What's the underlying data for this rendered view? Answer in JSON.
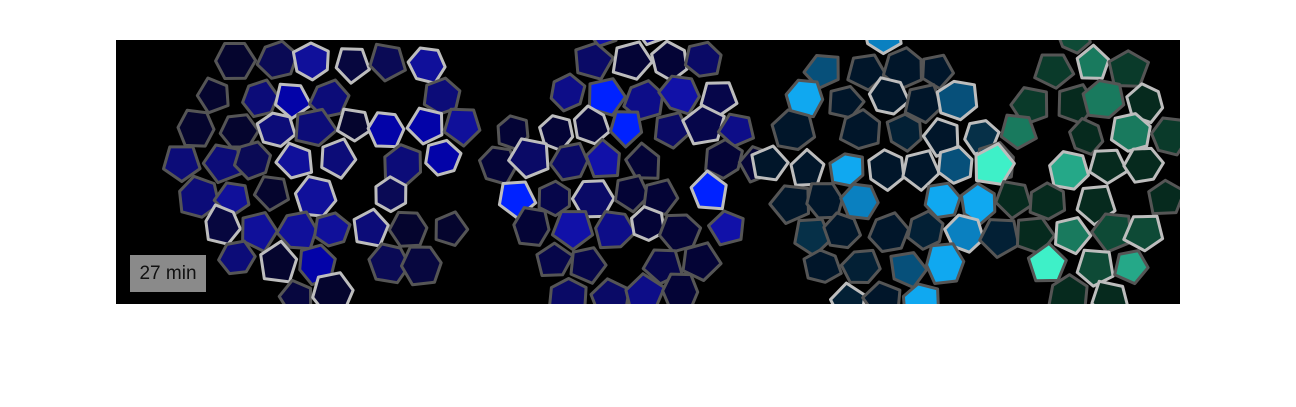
{
  "label": "27 min"
}
